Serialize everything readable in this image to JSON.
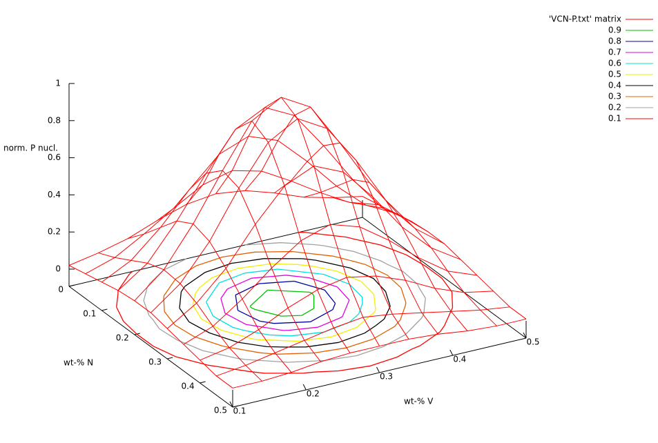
{
  "chart_data": {
    "type": "surface3d",
    "xlabel": "wt-% V",
    "ylabel": "wt-% N",
    "zlabel": "norm. P nucl.",
    "surface_name": "'VCN-P.txt' matrix",
    "surface_color": "#ff0000",
    "x": [
      0.1,
      0.14,
      0.18,
      0.22,
      0.26,
      0.3,
      0.34,
      0.38,
      0.42,
      0.46,
      0.5
    ],
    "y": [
      0,
      0.05,
      0.1,
      0.15,
      0.2,
      0.25,
      0.3,
      0.35,
      0.4,
      0.45,
      0.5
    ],
    "z": [
      [
        0.02,
        0.05,
        0.09,
        0.15,
        0.2,
        0.22,
        0.2,
        0.15,
        0.09,
        0.05,
        0.02
      ],
      [
        0.04,
        0.09,
        0.18,
        0.28,
        0.37,
        0.41,
        0.37,
        0.28,
        0.18,
        0.09,
        0.04
      ],
      [
        0.06,
        0.14,
        0.28,
        0.45,
        0.6,
        0.66,
        0.6,
        0.45,
        0.28,
        0.14,
        0.06
      ],
      [
        0.08,
        0.19,
        0.38,
        0.6,
        0.8,
        0.88,
        0.8,
        0.6,
        0.38,
        0.19,
        0.08
      ],
      [
        0.09,
        0.22,
        0.43,
        0.68,
        0.91,
        1.0,
        0.91,
        0.68,
        0.43,
        0.22,
        0.09
      ],
      [
        0.09,
        0.21,
        0.4,
        0.65,
        0.86,
        0.95,
        0.86,
        0.65,
        0.4,
        0.21,
        0.09
      ],
      [
        0.07,
        0.17,
        0.32,
        0.52,
        0.69,
        0.76,
        0.69,
        0.52,
        0.32,
        0.17,
        0.07
      ],
      [
        0.05,
        0.11,
        0.22,
        0.35,
        0.46,
        0.51,
        0.46,
        0.35,
        0.22,
        0.11,
        0.05
      ],
      [
        0.03,
        0.06,
        0.12,
        0.2,
        0.26,
        0.29,
        0.26,
        0.2,
        0.12,
        0.06,
        0.03
      ],
      [
        0.01,
        0.03,
        0.06,
        0.09,
        0.12,
        0.14,
        0.12,
        0.09,
        0.06,
        0.03,
        0.01
      ],
      [
        0.01,
        0.01,
        0.02,
        0.04,
        0.05,
        0.05,
        0.05,
        0.04,
        0.02,
        0.01,
        0.01
      ]
    ],
    "contours": [
      {
        "level": 0.9,
        "color": "#00c000"
      },
      {
        "level": 0.8,
        "color": "#0000a0"
      },
      {
        "level": 0.7,
        "color": "#e000e0"
      },
      {
        "level": 0.6,
        "color": "#00e0e0"
      },
      {
        "level": 0.5,
        "color": "#f0f000"
      },
      {
        "level": 0.4,
        "color": "#000000"
      },
      {
        "level": 0.3,
        "color": "#e06000"
      },
      {
        "level": 0.2,
        "color": "#a0a0a0"
      },
      {
        "level": 0.1,
        "color": "#ff0000"
      }
    ],
    "xlim": [
      0.1,
      0.5
    ],
    "ylim": [
      0,
      0.5
    ],
    "zlim": [
      0,
      1
    ],
    "xticks": [
      0.1,
      0.2,
      0.3,
      0.4,
      0.5
    ],
    "yticks": [
      0,
      0.1,
      0.2,
      0.3,
      0.4,
      0.5
    ],
    "zticks": [
      0,
      0.2,
      0.4,
      0.6,
      0.8,
      1
    ],
    "legend": "top-right"
  }
}
